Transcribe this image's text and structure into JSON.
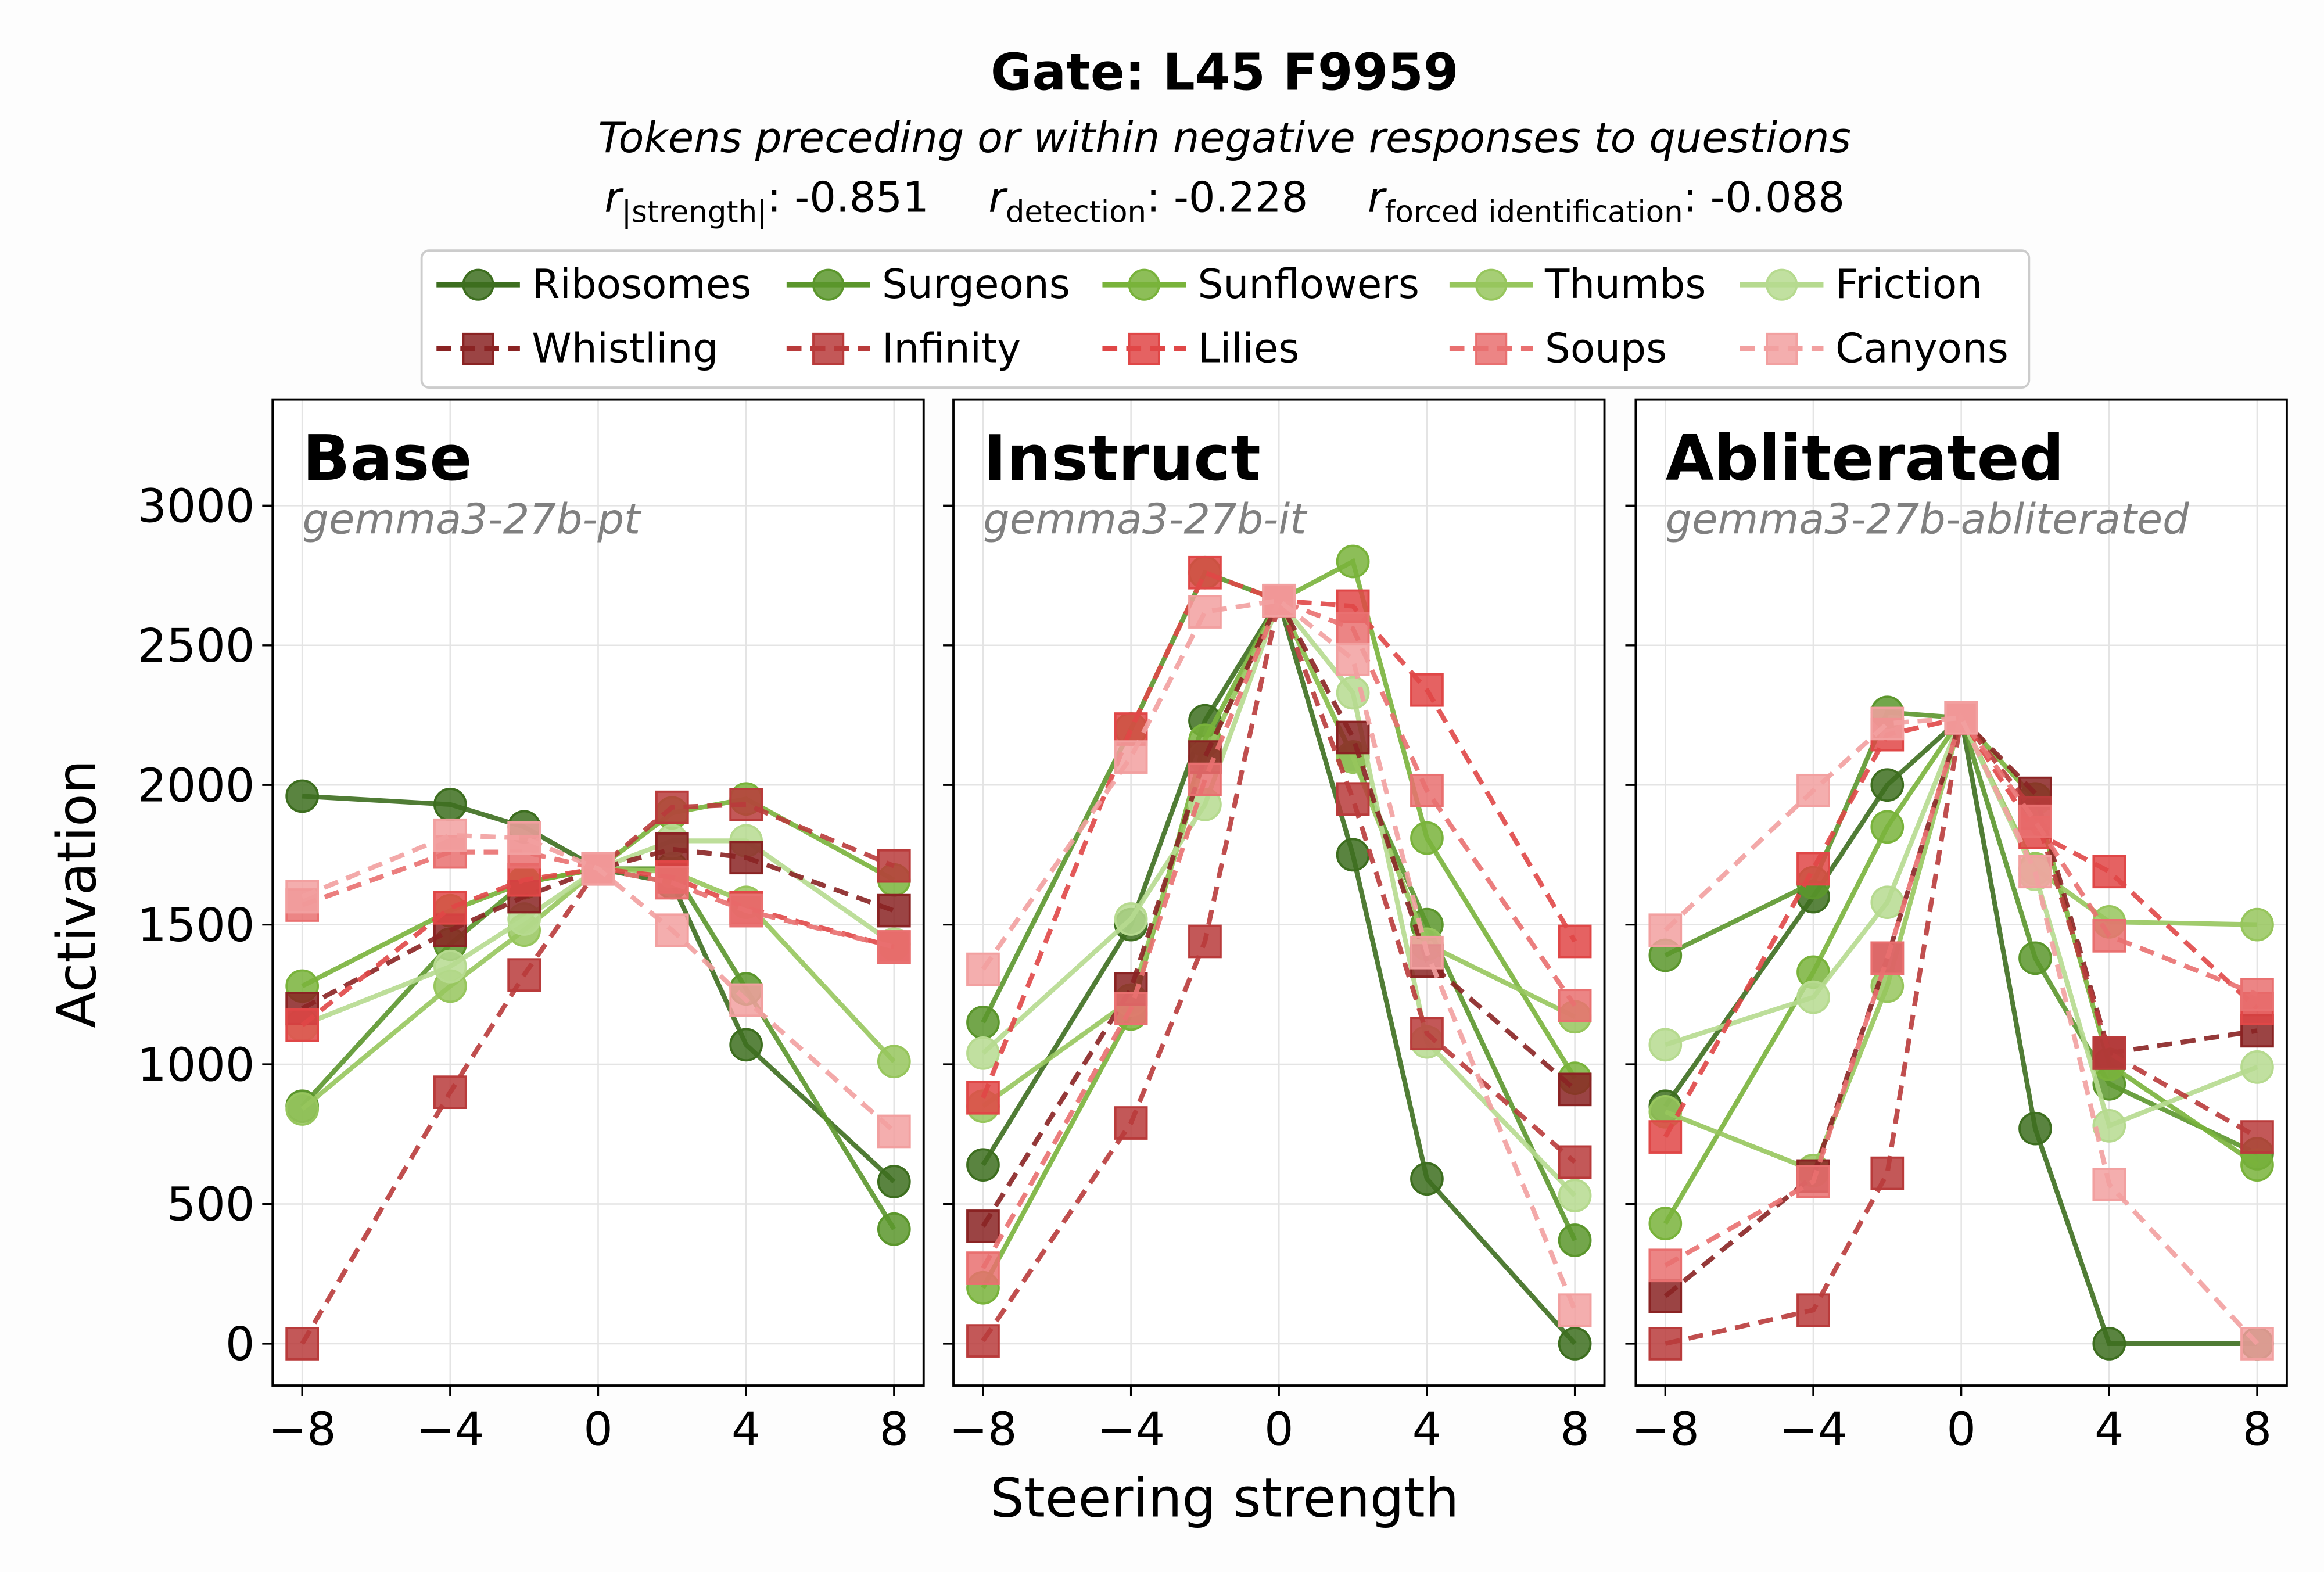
{
  "chart_data": {
    "type": "line",
    "title": "Gate: L45 F9959",
    "subtitle": "Tokens preceding or within negative responses to questions",
    "correlations": [
      {
        "symbol": "r",
        "subscript": "|strength|",
        "value": ": -0.851"
      },
      {
        "symbol": "r",
        "subscript": "detection",
        "value": ": -0.228"
      },
      {
        "symbol": "r",
        "subscript": "forced identification",
        "value": ": -0.088"
      }
    ],
    "xlabel": "Steering strength",
    "ylabel": "Activation",
    "x": [
      -8,
      -4,
      -2,
      0,
      2,
      4,
      8
    ],
    "xticks": [
      -8,
      -4,
      0,
      4,
      8
    ],
    "xtick_labels": [
      "−8",
      "−4",
      "0",
      "4",
      "8"
    ],
    "yticks": [
      0,
      500,
      1000,
      1500,
      2000,
      2500,
      3000
    ],
    "ytick_labels": [
      "0",
      "500",
      "1000",
      "1500",
      "2000",
      "2500",
      "3000"
    ],
    "xlim": [
      -8.8,
      8.8
    ],
    "ylim": [
      -150,
      3380
    ],
    "grid": true,
    "legend_placement": "top-center",
    "legend": [
      {
        "name": "Ribosomes",
        "color": "#3d6e1f",
        "marker": "circle",
        "style": "solid"
      },
      {
        "name": "Surgeons",
        "color": "#5b962c",
        "marker": "circle",
        "style": "solid"
      },
      {
        "name": "Sunflowers",
        "color": "#79b33b",
        "marker": "circle",
        "style": "solid"
      },
      {
        "name": "Thumbs",
        "color": "#97c65d",
        "marker": "circle",
        "style": "solid"
      },
      {
        "name": "Friction",
        "color": "#b6da8f",
        "marker": "circle",
        "style": "solid"
      },
      {
        "name": "Whistling",
        "color": "#8a2323",
        "marker": "square",
        "style": "dashed"
      },
      {
        "name": "Infinity",
        "color": "#b93b3b",
        "marker": "square",
        "style": "dashed"
      },
      {
        "name": "Lilies",
        "color": "#e04747",
        "marker": "square",
        "style": "dashed"
      },
      {
        "name": "Soups",
        "color": "#e97070",
        "marker": "square",
        "style": "dashed"
      },
      {
        "name": "Canyons",
        "color": "#f2a0a0",
        "marker": "square",
        "style": "dashed"
      }
    ],
    "panels": [
      {
        "title": "Base",
        "model": "gemma3-27b-pt",
        "series": [
          {
            "name": "Ribosomes",
            "values": [
              1960,
              1930,
              1850,
              1700,
              1650,
              1070,
              580
            ]
          },
          {
            "name": "Surgeons",
            "values": [
              850,
              1430,
              1650,
              1700,
              1700,
              1270,
              410
            ]
          },
          {
            "name": "Sunflowers",
            "values": [
              1280,
              1550,
              1650,
              1700,
              1900,
              1950,
              1660
            ]
          },
          {
            "name": "Thumbs",
            "values": [
              840,
              1280,
              1480,
              1700,
              1690,
              1580,
              1010
            ]
          },
          {
            "name": "Friction",
            "values": [
              1140,
              1350,
              1520,
              1700,
              1800,
              1800,
              1430
            ]
          },
          {
            "name": "Whistling",
            "values": [
              1200,
              1480,
              1600,
              1700,
              1770,
              1740,
              1550
            ]
          },
          {
            "name": "Infinity",
            "values": [
              0,
              900,
              1320,
              1700,
              1920,
              1930,
              1710
            ]
          },
          {
            "name": "Lilies",
            "values": [
              1140,
              1560,
              1660,
              1700,
              1670,
              1560,
              1420
            ]
          },
          {
            "name": "Soups",
            "values": [
              1570,
              1760,
              1760,
              1700,
              1650,
              1550,
              1420
            ]
          },
          {
            "name": "Canyons",
            "values": [
              1600,
              1820,
              1810,
              1700,
              1480,
              1230,
              760
            ]
          }
        ]
      },
      {
        "title": "Instruct",
        "model": "gemma3-27b-it",
        "series": [
          {
            "name": "Ribosomes",
            "values": [
              640,
              1500,
              2230,
              2660,
              1750,
              590,
              0
            ]
          },
          {
            "name": "Surgeons",
            "values": [
              1150,
              2200,
              2760,
              2660,
              2100,
              1500,
              370
            ]
          },
          {
            "name": "Sunflowers",
            "values": [
              200,
              1180,
              2160,
              2660,
              2800,
              1810,
              950
            ]
          },
          {
            "name": "Thumbs",
            "values": [
              850,
              1230,
              2100,
              2660,
              2100,
              1430,
              1170
            ]
          },
          {
            "name": "Friction",
            "values": [
              1040,
              1520,
              1930,
              2660,
              2330,
              1080,
              530
            ]
          },
          {
            "name": "Whistling",
            "values": [
              420,
              1270,
              2100,
              2660,
              2170,
              1370,
              910
            ]
          },
          {
            "name": "Infinity",
            "values": [
              10,
              790,
              1440,
              2660,
              1950,
              1110,
              650
            ]
          },
          {
            "name": "Lilies",
            "values": [
              880,
              2200,
              2760,
              2660,
              2640,
              2340,
              1440
            ]
          },
          {
            "name": "Soups",
            "values": [
              270,
              1200,
              2020,
              2660,
              2560,
              1980,
              1210
            ]
          },
          {
            "name": "Canyons",
            "values": [
              1340,
              2100,
              2620,
              2660,
              2450,
              1400,
              120
            ]
          }
        ]
      },
      {
        "title": "Abliterated",
        "model": "gemma3-27b-abliterated",
        "series": [
          {
            "name": "Ribosomes",
            "values": [
              850,
              1600,
              2000,
              2240,
              770,
              0,
              0
            ]
          },
          {
            "name": "Surgeons",
            "values": [
              1390,
              1650,
              2260,
              2240,
              1380,
              930,
              680
            ]
          },
          {
            "name": "Sunflowers",
            "values": [
              430,
              1330,
              1850,
              2240,
              1950,
              1000,
              640
            ]
          },
          {
            "name": "Thumbs",
            "values": [
              830,
              620,
              1280,
              2240,
              1700,
              1510,
              1500
            ]
          },
          {
            "name": "Friction",
            "values": [
              1070,
              1240,
              1580,
              2240,
              1680,
              780,
              990
            ]
          },
          {
            "name": "Whistling",
            "values": [
              170,
              600,
              1380,
              2240,
              1970,
              1040,
              1120
            ]
          },
          {
            "name": "Infinity",
            "values": [
              0,
              120,
              610,
              2240,
              1900,
              1040,
              740
            ]
          },
          {
            "name": "Lilies",
            "values": [
              740,
              1700,
              2180,
              2240,
              1830,
              1690,
              1200
            ]
          },
          {
            "name": "Soups",
            "values": [
              280,
              580,
              1380,
              2240,
              1870,
              1460,
              1250
            ]
          },
          {
            "name": "Canyons",
            "values": [
              1480,
              1980,
              2220,
              2240,
              1690,
              570,
              0
            ]
          }
        ]
      }
    ]
  }
}
